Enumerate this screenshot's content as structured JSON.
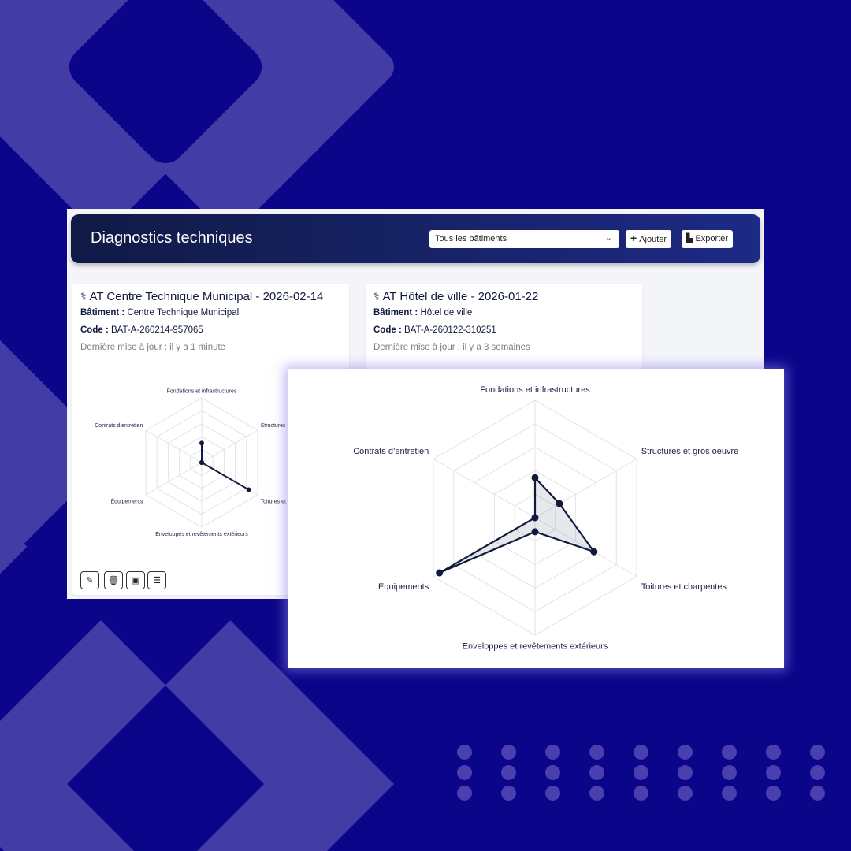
{
  "colors": {
    "background": "#0a0589",
    "shape": "#433ca6",
    "header_start": "#101a45",
    "header_end": "#1d2a86",
    "series": "#111a3d"
  },
  "header": {
    "title": "Diagnostics techniques",
    "filter": {
      "selected": "Tous les bâtiments",
      "icon": "chevron-down-icon"
    },
    "add_label": "Ajouter",
    "export_label": "Exporter"
  },
  "cards": [
    {
      "icon": "stethoscope-icon",
      "title": "AT Centre Technique Municipal - 2026-02-14",
      "building_label": "Bâtiment :",
      "building": "Centre Technique Municipal",
      "code_label": "Code :",
      "code": "BAT-A-260214-957065",
      "updated": "Dernière mise à jour : il y a 1 minute",
      "actions": [
        "edit-icon",
        "trash-icon",
        "pdf-icon",
        "checklist-icon"
      ]
    },
    {
      "icon": "stethoscope-icon",
      "title": "AT Hôtel de ville - 2026-01-22",
      "building_label": "Bâtiment :",
      "building": "Hôtel de ville",
      "code_label": "Code :",
      "code": "BAT-A-260122-310251",
      "updated": "Dernière mise à jour : il y a 3 semaines"
    }
  ],
  "chart_data": [
    {
      "type": "radar",
      "categories": [
        "Fondations et infrastructures",
        "Structures et gros oeuvre",
        "Toitures et charpentes",
        "Enveloppes et revêtements extérieurs",
        "Équipements",
        "Contrats d’entretien"
      ],
      "values": [
        1.5,
        0,
        4.2,
        0,
        0,
        0
      ],
      "rmax": 5,
      "rings": 5,
      "grid": true
    },
    {
      "type": "radar",
      "categories": [
        "Fondations et infrastructures",
        "Structures et gros oeuvre",
        "Toitures et charpentes",
        "Enveloppes et revêtements extérieurs",
        "Équipements",
        "Contrats d’entretien"
      ],
      "values": [
        1.7,
        1.2,
        2.9,
        0.6,
        4.7,
        0
      ],
      "rmax": 5,
      "rings": 5,
      "grid": true
    }
  ]
}
